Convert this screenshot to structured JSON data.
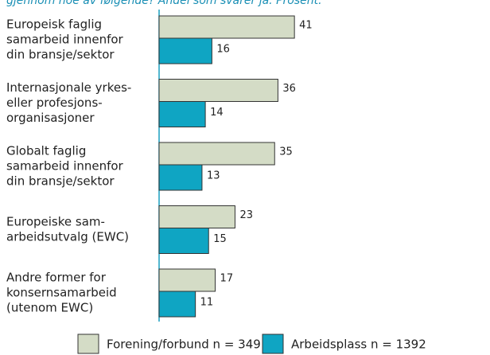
{
  "chart_data": {
    "type": "barh",
    "subtitle": "gjennom noe av følgende? Andel som svarer ja. Prosent.",
    "categories": [
      [
        "Europeisk faglig",
        "samarbeid innenfor",
        "din bransje/sektor"
      ],
      [
        "Internasjonale yrkes-",
        "eller profesjons-",
        "organisasjoner"
      ],
      [
        "Globalt faglig",
        "samarbeid innenfor",
        "din bransje/sektor"
      ],
      [
        "Europeiske sam-",
        "arbeidsutvalg (EWC)"
      ],
      [
        "Andre former for",
        "konsernsamarbeid",
        "(utenom EWC)"
      ]
    ],
    "series": [
      {
        "name": "Forening/forbund n = 349",
        "color": "#d4dcc6",
        "values": [
          41,
          36,
          35,
          23,
          17
        ]
      },
      {
        "name": "Arbeidsplass n = 1392",
        "color": "#0fa5c3",
        "values": [
          16,
          14,
          13,
          15,
          11
        ]
      }
    ]
  }
}
